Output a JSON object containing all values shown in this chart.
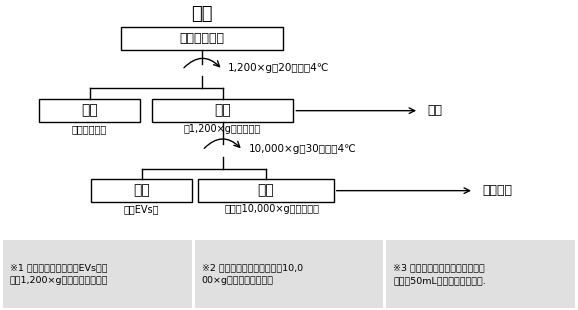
{
  "title": "血清",
  "bg_color": "#ffffff",
  "box1_label": "样品（血清）",
  "spin1_label": "1,200×g，20分钟，4℃",
  "pel1_label": "沉淠",
  "sup1_label": "上清",
  "purify1_label": "纯化",
  "sub_pel1": "（细胞碎片）",
  "sub_sup1": "（1,200×g上清片段）",
  "spin2_label": "10,000×g，30分钟，4℃",
  "pel2_label": "沉淠",
  "sup2_label": "上清",
  "purify2_label": "纯化步骤",
  "sub_pel2": "（大EVs）",
  "sub_sup2": "上清（10,000×g上清片段）",
  "note1": "※1 如果需要外泌体和大EVs，请\n使用1,200×g上清片段作为样品",
  "note2": "※2 如果需要外泌体，请使用10,0\n00×g上清片段做为样品",
  "note3": "※3 该优化步骤适合样品体积较大\n，比如50mL条件性细胞培容基.",
  "note_bg": "#e0e0e0"
}
